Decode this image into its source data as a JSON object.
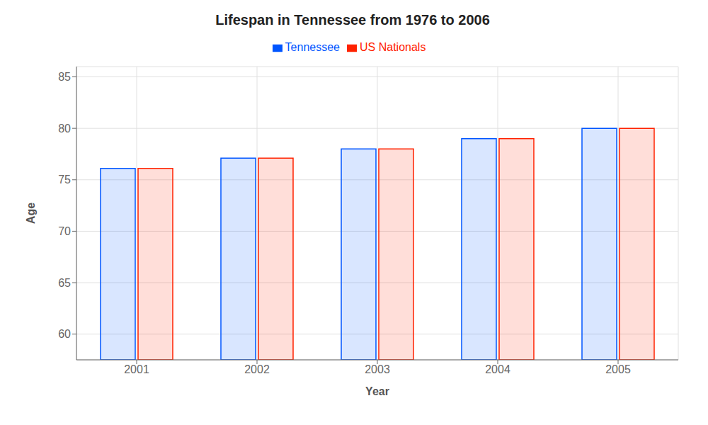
{
  "chart_data": {
    "type": "bar",
    "title": "Lifespan in Tennessee from 1976 to 2006",
    "x_label": "Year",
    "y_label": "Age",
    "categories": [
      "2001",
      "2002",
      "2003",
      "2004",
      "2005"
    ],
    "series": [
      {
        "name": "Tennessee",
        "color": "#0055ff",
        "values": [
          76.1,
          77.1,
          78.0,
          79.0,
          80.0
        ]
      },
      {
        "name": "US Nationals",
        "color": "#ff2200",
        "values": [
          76.1,
          77.1,
          78.0,
          79.0,
          80.0
        ]
      }
    ],
    "ylim": [
      57.5,
      86
    ],
    "yticks": [
      60,
      65,
      70,
      75,
      80,
      85
    ],
    "grid": true,
    "legend": "top"
  }
}
